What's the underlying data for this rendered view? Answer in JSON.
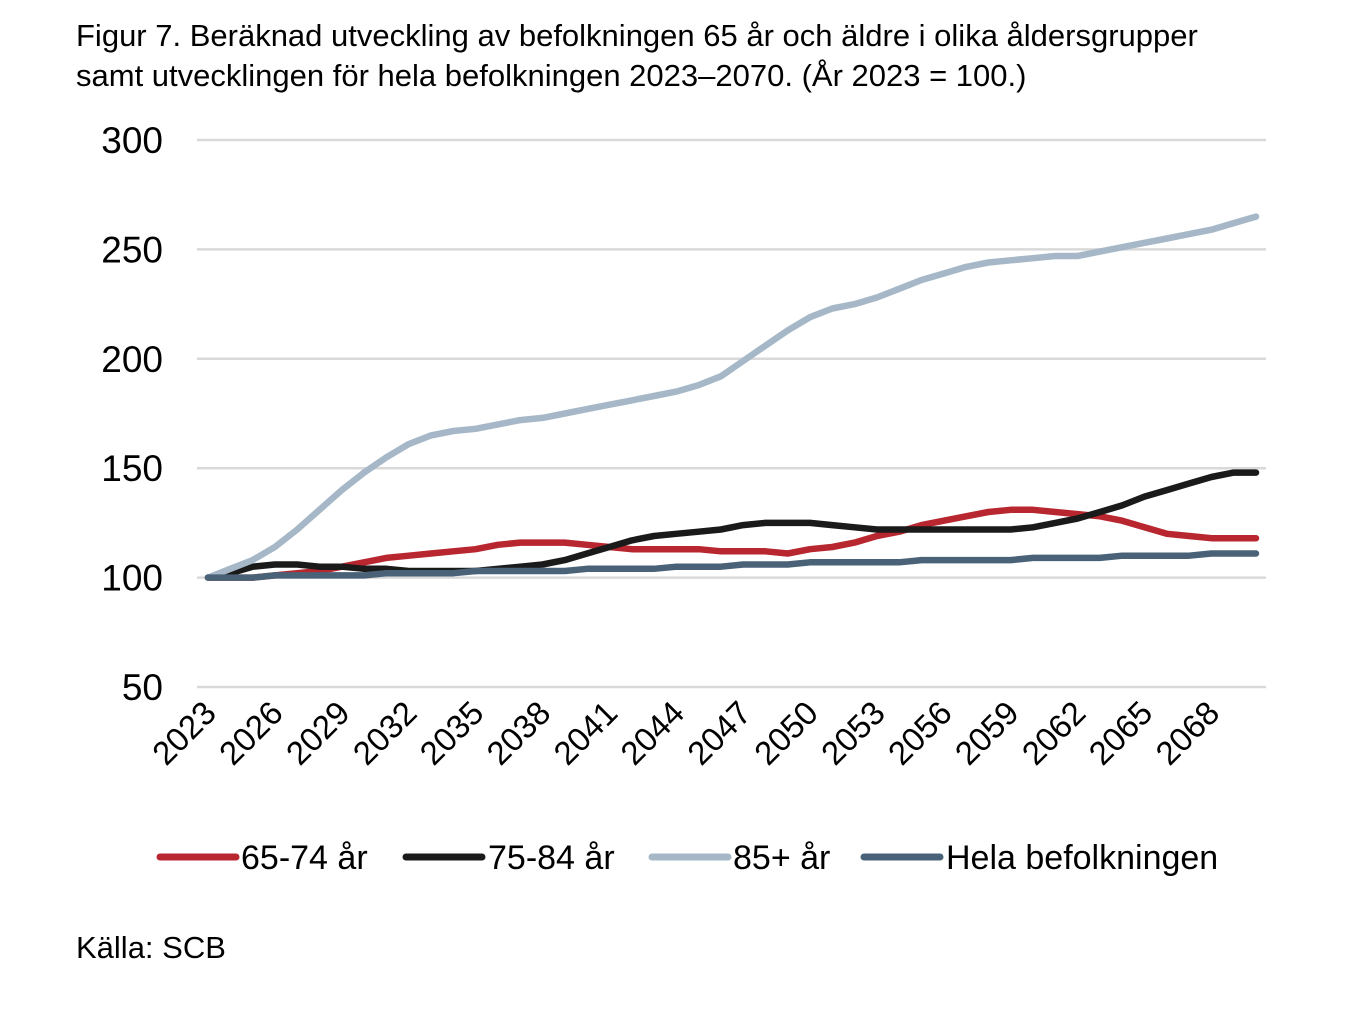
{
  "title_line1": "Figur 7. Beräknad utveckling av befolkningen 65 år och äldre i olika åldersgrupper",
  "title_line2": "samt utvecklingen för hela befolkningen 2023–2070. (År 2023 = 100.)",
  "source": "Källa: SCB",
  "chart_data": {
    "type": "line",
    "x": [
      2023,
      2024,
      2025,
      2026,
      2027,
      2028,
      2029,
      2030,
      2031,
      2032,
      2033,
      2034,
      2035,
      2036,
      2037,
      2038,
      2039,
      2040,
      2041,
      2042,
      2043,
      2044,
      2045,
      2046,
      2047,
      2048,
      2049,
      2050,
      2051,
      2052,
      2053,
      2054,
      2055,
      2056,
      2057,
      2058,
      2059,
      2060,
      2061,
      2062,
      2063,
      2064,
      2065,
      2066,
      2067,
      2068,
      2069,
      2070
    ],
    "x_ticks": [
      "2023",
      "2026",
      "2029",
      "2032",
      "2035",
      "2038",
      "2041",
      "2044",
      "2047",
      "2050",
      "2053",
      "2056",
      "2059",
      "2062",
      "2065",
      "2068"
    ],
    "x_tick_values": [
      2023,
      2026,
      2029,
      2032,
      2035,
      2038,
      2041,
      2044,
      2047,
      2050,
      2053,
      2056,
      2059,
      2062,
      2065,
      2068
    ],
    "y_ticks": [
      "50",
      "100",
      "150",
      "200",
      "250",
      "300"
    ],
    "y_tick_values": [
      50,
      100,
      150,
      200,
      250,
      300
    ],
    "ylim": [
      50,
      300
    ],
    "xlabel": "",
    "ylabel": "",
    "grid": "horizontal",
    "legend": "bottom",
    "series": [
      {
        "name": "65-74 år",
        "color": "#b8272f",
        "values": [
          100,
          100,
          100,
          101,
          102,
          103,
          105,
          107,
          109,
          110,
          111,
          112,
          113,
          115,
          116,
          116,
          116,
          115,
          114,
          113,
          113,
          113,
          113,
          112,
          112,
          112,
          111,
          113,
          114,
          116,
          119,
          121,
          124,
          126,
          128,
          130,
          131,
          131,
          130,
          129,
          128,
          126,
          123,
          120,
          119,
          118,
          118,
          118
        ]
      },
      {
        "name": "75-84 år",
        "color": "#1a1a1a",
        "values": [
          100,
          102,
          105,
          106,
          106,
          105,
          105,
          104,
          104,
          103,
          103,
          103,
          103,
          104,
          105,
          106,
          108,
          111,
          114,
          117,
          119,
          120,
          121,
          122,
          124,
          125,
          125,
          125,
          124,
          123,
          122,
          122,
          122,
          122,
          122,
          122,
          122,
          123,
          125,
          127,
          130,
          133,
          137,
          140,
          143,
          146,
          148,
          148
        ]
      },
      {
        "name": "85+ år",
        "color": "#a6b8c8",
        "values": [
          100,
          104,
          108,
          114,
          122,
          131,
          140,
          148,
          155,
          161,
          165,
          167,
          168,
          170,
          172,
          173,
          175,
          177,
          179,
          181,
          183,
          185,
          188,
          192,
          199,
          206,
          213,
          219,
          223,
          225,
          228,
          232,
          236,
          239,
          242,
          244,
          245,
          246,
          247,
          247,
          249,
          251,
          253,
          255,
          257,
          259,
          262,
          265
        ]
      },
      {
        "name": "Hela befolkningen",
        "color": "#4a6277",
        "values": [
          100,
          100,
          100,
          101,
          101,
          101,
          101,
          101,
          102,
          102,
          102,
          102,
          103,
          103,
          103,
          103,
          103,
          104,
          104,
          104,
          104,
          105,
          105,
          105,
          106,
          106,
          106,
          107,
          107,
          107,
          107,
          107,
          108,
          108,
          108,
          108,
          108,
          109,
          109,
          109,
          109,
          110,
          110,
          110,
          110,
          111,
          111,
          111
        ]
      }
    ]
  }
}
